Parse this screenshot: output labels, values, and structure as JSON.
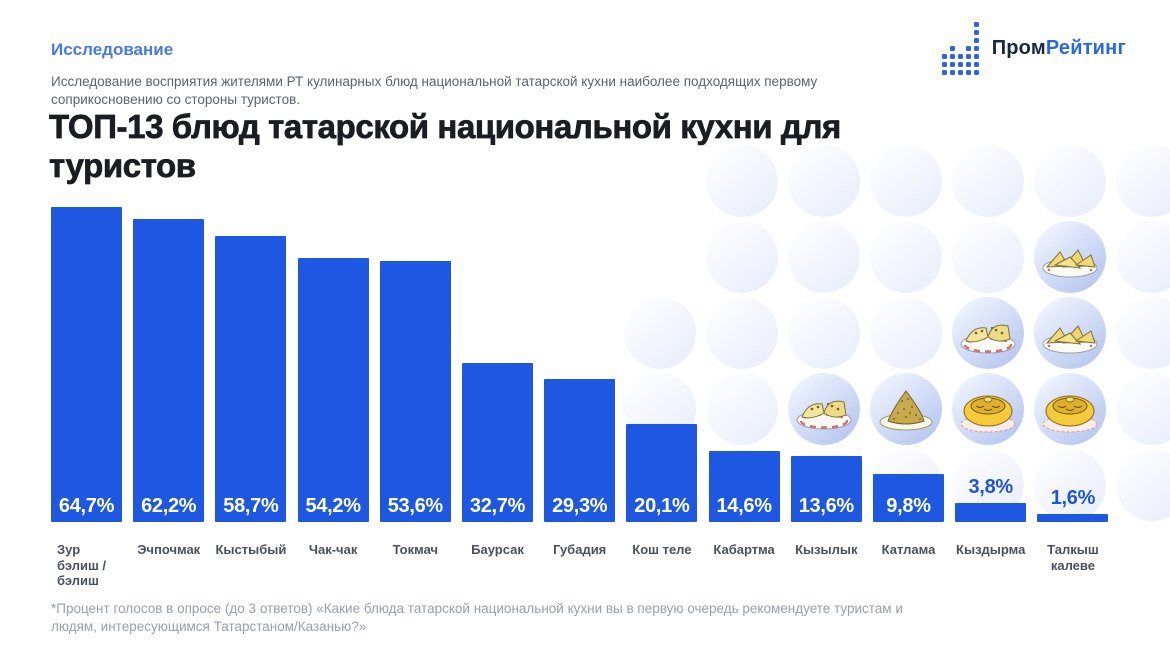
{
  "header": {
    "eyebrow": "Исследование"
  },
  "logo": {
    "text_dark": "Пром",
    "text_blue": "Рейтинг"
  },
  "intro": {
    "subtitle": "Исследование восприятия жителями РТ кулинарных блюд национальной татарской кухни наиболее подходящих первому\nсоприкосновению со стороны туристов."
  },
  "title": "ТОП-13 блюд татарской национальной кухни для\nтуристов",
  "footnote": "*Процент голосов в опросе (до 3 ответов) «Какие блюда татарской национальной кухни вы в первую очередь рекомендуете туристам и\nлюдям, интересующимся Татарстаном/Казанью?»",
  "colors": {
    "bar": "#1d57e2",
    "value_inside": "#ffffff",
    "value_outside": "#1d55dd",
    "eyebrow_blue": "#4678e8",
    "logo_dark": "#152746",
    "logo_blue": "#2769e3",
    "title_text": "#1b1d22",
    "category_text": "#4b505a",
    "footnote_text": "#999fa8"
  },
  "chart_data": {
    "type": "bar",
    "title": "ТОП-13 блюд татарской национальной кухни для туристов",
    "xlabel": "",
    "ylabel": "Процент голосов в опросе",
    "unit": "%",
    "ylim": [
      0,
      70
    ],
    "grid": false,
    "legend": "none",
    "bar_color": "#1d57e2",
    "categories": [
      "Зур\nбэлиш /\nбэлиш",
      "Эчпочмак",
      "Кыстыбый",
      "Чак-чак",
      "Токмач",
      "Баурсак",
      "Губадия",
      "Кош теле",
      "Кабартма",
      "Кызылык",
      "Катлама",
      "Кыздырма",
      "Талкыш калеве"
    ],
    "values": [
      64.7,
      62.2,
      58.7,
      54.2,
      53.6,
      32.7,
      29.3,
      20.1,
      14.6,
      13.6,
      9.8,
      3.8,
      1.6
    ],
    "value_labels": [
      "64,7%",
      "62,2%",
      "58,7%",
      "54,2%",
      "53,6%",
      "32,7%",
      "29,3%",
      "20,1%",
      "14,6%",
      "13,6%",
      "9,8%",
      "3,8%",
      "1,6%"
    ]
  },
  "decor": {
    "food_circles": [
      {
        "icon": "echpochmak-icon",
        "col": 5,
        "row": 1
      },
      {
        "icon": "kystybyi-icon",
        "col": 4,
        "row": 2
      },
      {
        "icon": "echpochmak-icon",
        "col": 5,
        "row": 2
      },
      {
        "icon": "kystybyi-icon",
        "col": 2,
        "row": 3
      },
      {
        "icon": "chakchak-icon",
        "col": 3,
        "row": 3
      },
      {
        "icon": "gubadiya-icon",
        "col": 4,
        "row": 3
      },
      {
        "icon": "gubadiya-icon",
        "col": 5,
        "row": 3
      }
    ]
  }
}
